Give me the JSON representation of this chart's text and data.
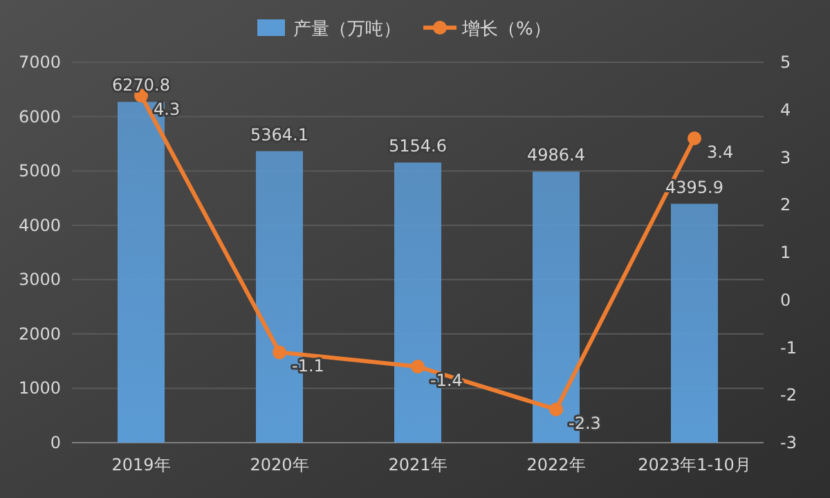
{
  "chart_data": {
    "type": "bar",
    "categories": [
      "2019年",
      "2020年",
      "2021年",
      "2022年",
      "2023年1-10月"
    ],
    "series": [
      {
        "name": "产量（万吨）",
        "color": "#5b9bd5",
        "values": [
          6270.8,
          5364.1,
          5154.6,
          4986.4,
          4395.9
        ]
      },
      {
        "name": "增长（%）",
        "type": "line",
        "axis": "y2",
        "color": "#ed7d31",
        "values": [
          4.3,
          -1.1,
          -1.4,
          -2.3,
          3.4
        ]
      }
    ],
    "ylim": [
      0,
      7000
    ],
    "yticks": [
      0,
      1000,
      2000,
      3000,
      4000,
      5000,
      6000,
      7000
    ],
    "y2lim": [
      -3,
      5
    ],
    "y2ticks": [
      -3,
      -2,
      -1,
      0,
      1,
      2,
      3,
      4,
      5
    ],
    "grid": "y",
    "legend": "top",
    "marker": "circle",
    "data_labels": true
  }
}
